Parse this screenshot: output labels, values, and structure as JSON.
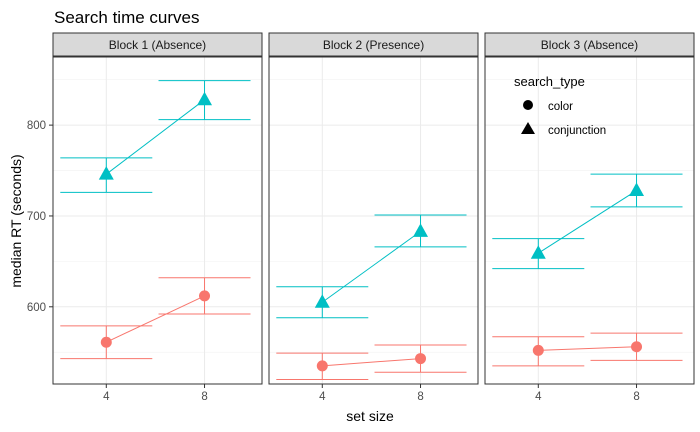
{
  "chart_data": {
    "type": "scatter",
    "title": "Search time curves",
    "xlabel": "set size",
    "ylabel": "median RT (seconds)",
    "x_ticks": [
      "4",
      "8"
    ],
    "ylim": [
      515,
      875
    ],
    "y_ticks": [
      600,
      700,
      800
    ],
    "grid": true,
    "legend": {
      "title": "search_type",
      "placement": "inside-top-right-panel-3",
      "entries": [
        {
          "label": "color",
          "shape": "circle"
        },
        {
          "label": "conjunction",
          "shape": "triangle"
        }
      ]
    },
    "colors": {
      "color": "#f8766d",
      "conjunction": "#00bfc4"
    },
    "panels": [
      {
        "label": "Block 1 (Absence)",
        "series": [
          {
            "name": "color",
            "x": [
              4,
              8
            ],
            "y": [
              561,
              612
            ],
            "ymin": [
              543,
              592
            ],
            "ymax": [
              579,
              632
            ]
          },
          {
            "name": "conjunction",
            "x": [
              4,
              8
            ],
            "y": [
              746,
              828
            ],
            "ymin": [
              726,
              806
            ],
            "ymax": [
              764,
              849
            ]
          }
        ]
      },
      {
        "label": "Block 2 (Presence)",
        "series": [
          {
            "name": "color",
            "x": [
              4,
              8
            ],
            "y": [
              535,
              543
            ],
            "ymin": [
              520,
              528
            ],
            "ymax": [
              549,
              558
            ]
          },
          {
            "name": "conjunction",
            "x": [
              4,
              8
            ],
            "y": [
              605,
              683
            ],
            "ymin": [
              588,
              666
            ],
            "ymax": [
              622,
              701
            ]
          }
        ]
      },
      {
        "label": "Block 3 (Absence)",
        "series": [
          {
            "name": "color",
            "x": [
              4,
              8
            ],
            "y": [
              552,
              556
            ],
            "ymin": [
              535,
              541
            ],
            "ymax": [
              567,
              571
            ]
          },
          {
            "name": "conjunction",
            "x": [
              4,
              8
            ],
            "y": [
              659,
              728
            ],
            "ymin": [
              642,
              710
            ],
            "ymax": [
              675,
              746
            ]
          }
        ]
      }
    ]
  }
}
